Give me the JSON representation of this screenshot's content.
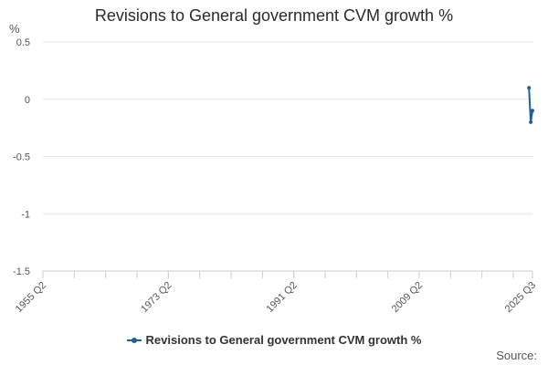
{
  "chart_data": {
    "type": "line",
    "title": "Revisions to General government CVM growth %",
    "ylabel": "%",
    "xlabel": "",
    "ylim": [
      -1.5,
      0.5
    ],
    "yticks": [
      0.5,
      0,
      -0.5,
      -1,
      -1.5
    ],
    "ytick_labels": [
      "0.5",
      "0",
      "-0.5",
      "-1",
      "-1.5"
    ],
    "x_range_index": [
      0,
      281
    ],
    "xtick_labels": [
      {
        "label": "1955 Q2",
        "index": 0
      },
      {
        "label": "1973 Q2",
        "index": 72
      },
      {
        "label": "1991 Q2",
        "index": 144
      },
      {
        "label": "2009 Q2",
        "index": 216
      },
      {
        "label": "2025 Q3",
        "index": 281
      }
    ],
    "minor_tick_interval": 18,
    "series": [
      {
        "name": "Revisions to General government CVM growth %",
        "color": "#206095",
        "points": [
          {
            "index": 279,
            "value": 0.1
          },
          {
            "index": 280,
            "value": -0.2
          },
          {
            "index": 281,
            "value": -0.1
          }
        ]
      }
    ],
    "grid": true,
    "legend_position": "bottom"
  },
  "source_label": "Source:"
}
